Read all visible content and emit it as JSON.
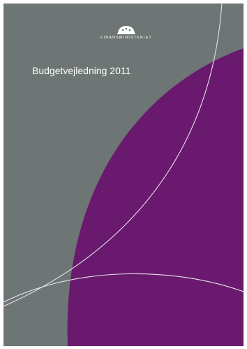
{
  "cover": {
    "publisher": "FINANSMINISTERIET",
    "title": "Budgetvejledning 2011",
    "colors": {
      "background": "#6e7575",
      "accent": "#6a1a6e",
      "line": "#e6e1ea",
      "text": "#ffffff"
    },
    "logo_icon": "crown-icon"
  }
}
